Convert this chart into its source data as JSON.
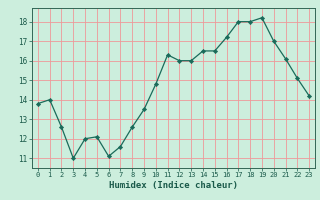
{
  "x": [
    0,
    1,
    2,
    3,
    4,
    5,
    6,
    7,
    8,
    9,
    10,
    11,
    12,
    13,
    14,
    15,
    16,
    17,
    18,
    19,
    20,
    21,
    22,
    23
  ],
  "y": [
    13.8,
    14.0,
    12.6,
    11.0,
    12.0,
    12.1,
    11.1,
    11.6,
    12.6,
    13.5,
    14.8,
    16.3,
    16.0,
    16.0,
    16.5,
    16.5,
    17.2,
    18.0,
    18.0,
    18.2,
    17.0,
    16.1,
    15.1,
    14.2
  ],
  "xlim": [
    -0.5,
    23.5
  ],
  "ylim": [
    10.5,
    18.7
  ],
  "yticks": [
    11,
    12,
    13,
    14,
    15,
    16,
    17,
    18
  ],
  "xticks": [
    0,
    1,
    2,
    3,
    4,
    5,
    6,
    7,
    8,
    9,
    10,
    11,
    12,
    13,
    14,
    15,
    16,
    17,
    18,
    19,
    20,
    21,
    22,
    23
  ],
  "xlabel": "Humidex (Indice chaleur)",
  "line_color": "#1a6b5a",
  "marker_color": "#1a6b5a",
  "bg_color": "#cceedd",
  "grid_color": "#ee9999",
  "axis_color": "#336655",
  "tick_label_color": "#1a5a4a",
  "xlabel_color": "#1a5a4a"
}
